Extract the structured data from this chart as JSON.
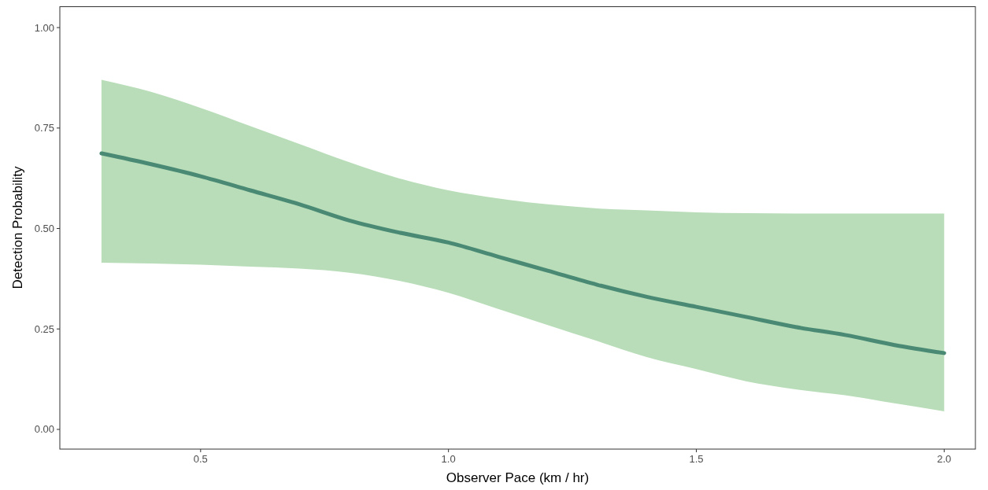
{
  "chart_data": {
    "type": "line",
    "xlabel": "Observer Pace (km / hr)",
    "ylabel": "Detection Probability",
    "xlim": [
      0.216,
      2.063
    ],
    "ylim": [
      -0.049,
      1.053
    ],
    "xticks": [
      0.5,
      {
        "value": 1,
        "label": "1.0"
      },
      1.5,
      {
        "value": 2,
        "label": "2.0"
      }
    ],
    "yticks": [
      {
        "value": 0,
        "label": "0.00"
      },
      {
        "value": 0.25,
        "label": "0.25"
      },
      {
        "value": 0.5,
        "label": "0.50"
      },
      {
        "value": 0.75,
        "label": "0.75"
      },
      {
        "value": 1,
        "label": "1.00"
      }
    ],
    "grid": false,
    "marker": "none",
    "line_style": "solid",
    "series": [
      {
        "color": "#4a8a74",
        "x": [
          0.3,
          0.4,
          0.5,
          0.6,
          0.7,
          0.8,
          0.9,
          1.0,
          1.1,
          1.2,
          1.3,
          1.4,
          1.5,
          1.6,
          1.7,
          1.8,
          1.9,
          2.0
        ],
        "values": [
          0.687,
          0.66,
          0.63,
          0.595,
          0.56,
          0.52,
          0.49,
          0.465,
          0.43,
          0.395,
          0.36,
          0.33,
          0.305,
          0.28,
          0.255,
          0.235,
          0.21,
          0.19
        ],
        "lower": [
          0.415,
          0.413,
          0.41,
          0.405,
          0.4,
          0.39,
          0.37,
          0.34,
          0.3,
          0.26,
          0.22,
          0.18,
          0.15,
          0.12,
          0.1,
          0.085,
          0.065,
          0.045
        ],
        "upper": [
          0.87,
          0.84,
          0.8,
          0.755,
          0.71,
          0.665,
          0.625,
          0.595,
          0.575,
          0.56,
          0.55,
          0.545,
          0.54,
          0.538,
          0.537,
          0.537,
          0.537,
          0.537
        ]
      }
    ]
  }
}
